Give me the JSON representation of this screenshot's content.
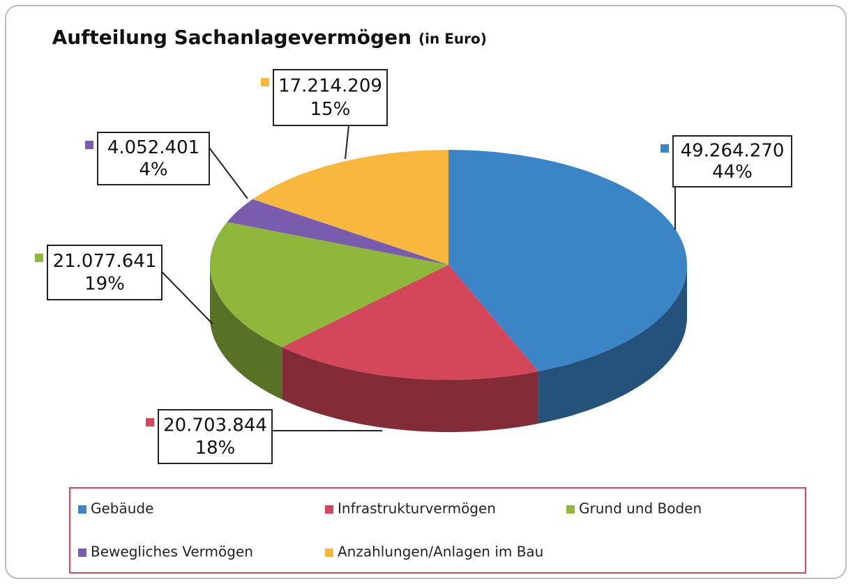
{
  "chart_data": {
    "type": "pie3d",
    "title": "Aufteilung Sachanlagevermögen",
    "title_unit": "(in Euro)",
    "categories": [
      "Gebäude",
      "Infrastrukturvermögen",
      "Grund und Boden",
      "Bewegliches Vermögen",
      "Anzahlungen/Anlagen im Bau"
    ],
    "values": [
      49264270,
      20703844,
      21077641,
      4052401,
      17214209
    ],
    "value_labels": [
      "49.264.270",
      "20.703.844",
      "21.077.641",
      "4.052.401",
      "17.214.209"
    ],
    "percent_labels": [
      "44%",
      "18%",
      "19%",
      "4%",
      "15%"
    ],
    "colors": [
      "#3b84c6",
      "#d4475b",
      "#8fb73b",
      "#7a5cae",
      "#f8b83e"
    ],
    "legend": "bottom"
  }
}
